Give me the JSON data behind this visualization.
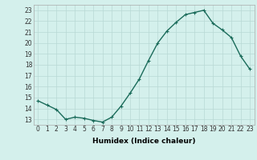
{
  "x": [
    0,
    1,
    2,
    3,
    4,
    5,
    6,
    7,
    8,
    9,
    10,
    11,
    12,
    13,
    14,
    15,
    16,
    17,
    18,
    19,
    20,
    21,
    22,
    23
  ],
  "y": [
    14.7,
    14.3,
    13.9,
    13.0,
    13.2,
    13.1,
    12.9,
    12.75,
    13.2,
    14.2,
    15.4,
    16.7,
    18.4,
    20.0,
    21.1,
    21.9,
    22.6,
    22.8,
    23.0,
    21.8,
    21.2,
    20.5,
    18.8,
    17.6
  ],
  "line_color": "#1a6b5a",
  "marker": "+",
  "marker_size": 3,
  "linewidth": 1.0,
  "bg_color": "#d4f0ec",
  "grid_color": "#b8d8d4",
  "xlabel": "Humidex (Indice chaleur)",
  "ylim": [
    12.5,
    23.5
  ],
  "xlim": [
    -0.5,
    23.5
  ],
  "yticks": [
    13,
    14,
    15,
    16,
    17,
    18,
    19,
    20,
    21,
    22,
    23
  ],
  "xticks": [
    0,
    1,
    2,
    3,
    4,
    5,
    6,
    7,
    8,
    9,
    10,
    11,
    12,
    13,
    14,
    15,
    16,
    17,
    18,
    19,
    20,
    21,
    22,
    23
  ],
  "tick_fontsize": 5.5,
  "xlabel_fontsize": 6.5,
  "xlabel_fontweight": "bold"
}
